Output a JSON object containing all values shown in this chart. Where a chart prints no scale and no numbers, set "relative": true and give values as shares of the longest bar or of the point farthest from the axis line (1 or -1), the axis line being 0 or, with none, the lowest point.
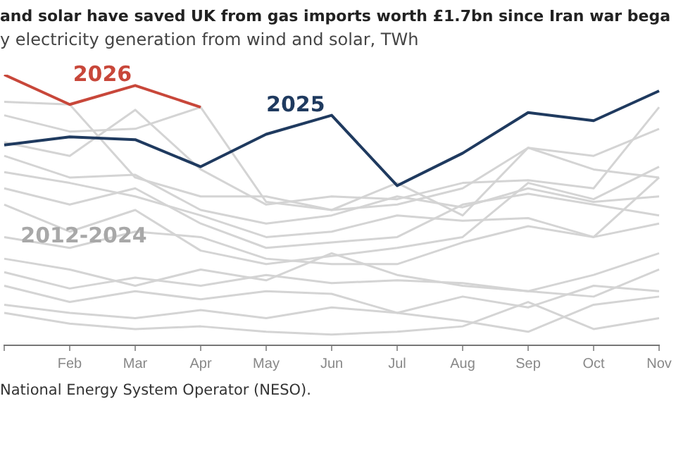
{
  "chart_data": {
    "type": "line",
    "relative": true,
    "title": "and solar have saved UK from gas imports worth £1.7bn since Iran war bega",
    "subtitle": "y electricity generation from wind and solar, TWh",
    "categories": [
      null,
      "Feb",
      "Mar",
      "Apr",
      "May",
      "Jun",
      "Jul",
      "Aug",
      "Sep",
      "Oct",
      "Nov"
    ],
    "series": [
      {
        "color": "#d4d4d4",
        "values": [
          0.9,
          0.89,
          0.62,
          0.55,
          0.55,
          0.5,
          0.52,
          0.58,
          0.73,
          0.7,
          0.8
        ]
      },
      {
        "color": "#d4d4d4",
        "values": [
          0.85,
          0.79,
          0.8,
          0.88,
          0.53,
          0.5,
          0.6,
          0.48,
          0.73,
          0.65,
          0.62
        ]
      },
      {
        "color": "#d4d4d4",
        "values": [
          0.75,
          0.7,
          0.87,
          0.65,
          0.52,
          0.55,
          0.54,
          0.6,
          0.61,
          0.58,
          0.88
        ]
      },
      {
        "color": "#d4d4d4",
        "values": [
          0.7,
          0.62,
          0.63,
          0.5,
          0.45,
          0.48,
          0.55,
          0.51,
          0.58,
          0.53,
          0.55
        ]
      },
      {
        "color": "#d4d4d4",
        "values": [
          0.64,
          0.6,
          0.55,
          0.48,
          0.4,
          0.42,
          0.48,
          0.46,
          0.47,
          0.4,
          0.62
        ]
      },
      {
        "color": "#d4d4d4",
        "values": [
          0.58,
          0.52,
          0.58,
          0.45,
          0.36,
          0.38,
          0.4,
          0.52,
          0.56,
          0.52,
          0.48
        ]
      },
      {
        "color": "#d4d4d4",
        "values": [
          0.52,
          0.42,
          0.5,
          0.35,
          0.3,
          0.33,
          0.36,
          0.4,
          0.6,
          0.54,
          0.66
        ]
      },
      {
        "color": "#d4d4d4",
        "values": [
          0.4,
          0.36,
          0.42,
          0.4,
          0.32,
          0.3,
          0.3,
          0.38,
          0.44,
          0.4,
          0.45
        ]
      },
      {
        "color": "#d4d4d4",
        "values": [
          0.32,
          0.28,
          0.22,
          0.28,
          0.24,
          0.34,
          0.26,
          0.22,
          0.2,
          0.26,
          0.34
        ]
      },
      {
        "color": "#d4d4d4",
        "values": [
          0.27,
          0.21,
          0.25,
          0.22,
          0.26,
          0.23,
          0.24,
          0.23,
          0.2,
          0.18,
          0.28
        ]
      },
      {
        "color": "#d4d4d4",
        "values": [
          0.22,
          0.16,
          0.2,
          0.17,
          0.2,
          0.19,
          0.12,
          0.18,
          0.14,
          0.22,
          0.2
        ]
      },
      {
        "color": "#d4d4d4",
        "values": [
          0.15,
          0.12,
          0.1,
          0.13,
          0.1,
          0.14,
          0.12,
          0.09,
          0.05,
          0.15,
          0.18
        ]
      },
      {
        "color": "#d4d4d4",
        "values": [
          0.12,
          0.08,
          0.06,
          0.07,
          0.05,
          0.04,
          0.05,
          0.07,
          0.16,
          0.06,
          0.1
        ]
      },
      {
        "name": "2025",
        "color": "#1f3a5f",
        "values": [
          0.74,
          0.77,
          0.76,
          0.66,
          0.78,
          0.85,
          0.59,
          0.71,
          0.86,
          0.83,
          0.94
        ]
      },
      {
        "name": "2026",
        "color": "#c8473a",
        "values": [
          1.0,
          0.89,
          0.96,
          0.88,
          null,
          null,
          null,
          null,
          null,
          null,
          null
        ]
      }
    ],
    "annotations": [
      {
        "text": "2012-2024",
        "x": "Feb",
        "y": 0.4
      },
      "National Energy System Operator (NESO)."
    ],
    "legend": false
  }
}
